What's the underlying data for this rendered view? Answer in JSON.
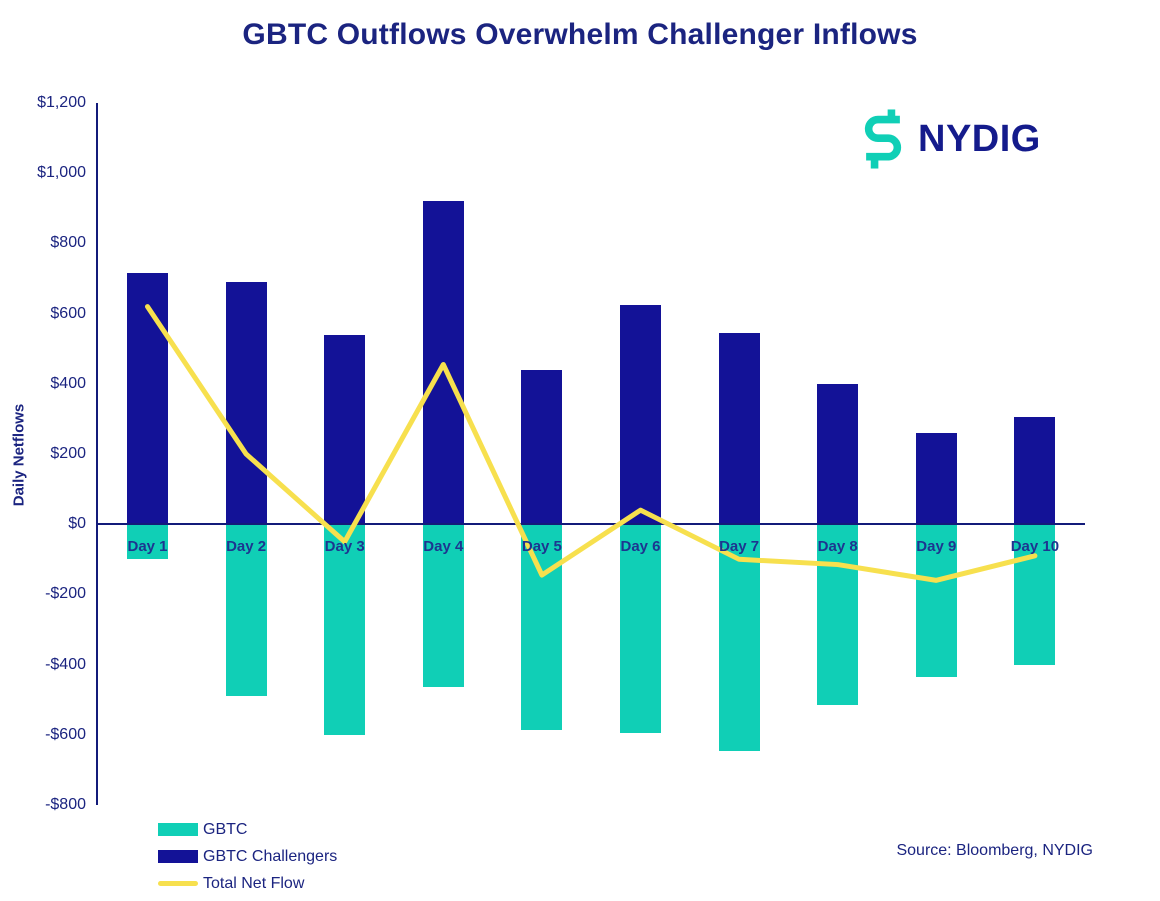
{
  "title": "GBTC Outflows Overwhelm Challenger Inflows",
  "logo": {
    "text": "NYDIG"
  },
  "source": "Source: Bloomberg, NYDIG",
  "colors": {
    "gbtc_teal": "#10CFB6",
    "challenger_navy": "#131297",
    "net_flow_yellow": "#F7E04E",
    "text_navy": "#1B2480",
    "day_label_navy": "#1D3590",
    "axis_navy": "#131B7A"
  },
  "legend": {
    "items": [
      {
        "label": "GBTC",
        "swatch": "bar",
        "color_key": "gbtc_teal"
      },
      {
        "label": "GBTC Challengers",
        "swatch": "bar",
        "color_key": "challenger_navy"
      },
      {
        "label": "Total Net Flow",
        "swatch": "line",
        "color_key": "net_flow_yellow"
      }
    ]
  },
  "chart_data": {
    "type": "bar",
    "subtype": "bar+line-combo",
    "title": "GBTC Outflows Overwhelm Challenger Inflows",
    "xlabel": "",
    "ylabel": "Daily Netflows",
    "categories": [
      "Day 1",
      "Day 2",
      "Day 3",
      "Day 4",
      "Day 5",
      "Day 6",
      "Day 7",
      "Day 8",
      "Day 9",
      "Day 10"
    ],
    "series": [
      {
        "name": "GBTC",
        "type": "bar",
        "color": "#10CFB6",
        "values": [
          -100,
          -490,
          -600,
          -465,
          -585,
          -595,
          -645,
          -515,
          -435,
          -400
        ]
      },
      {
        "name": "GBTC Challengers",
        "type": "bar",
        "color": "#131297",
        "values": [
          715,
          690,
          540,
          920,
          440,
          625,
          545,
          400,
          260,
          305
        ]
      },
      {
        "name": "Total Net Flow",
        "type": "line",
        "color": "#F7E04E",
        "values": [
          620,
          200,
          -50,
          455,
          -145,
          40,
          -100,
          -115,
          -160,
          -90
        ]
      }
    ],
    "ylim": [
      -800,
      1200
    ],
    "ytick_step": 200,
    "yticks": [
      "$1,200",
      "$1,000",
      "$800",
      "$600",
      "$400",
      "$200",
      "$0",
      "-$200",
      "-$400",
      "-$600",
      "-$800"
    ],
    "grid": false,
    "legend_position": "bottom-left"
  }
}
